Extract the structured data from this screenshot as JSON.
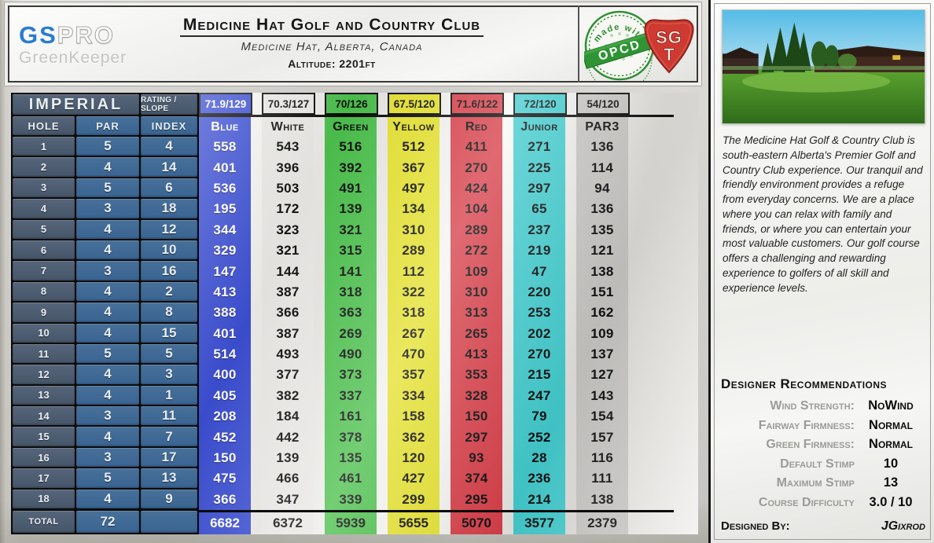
{
  "header": {
    "logo": {
      "gs": "GS",
      "pro": "PRO",
      "subtitle": "GreenKeeper"
    },
    "title": "Medicine Hat Golf and Country Club",
    "subtitle": "Medicine Hat, Alberta, Canada",
    "altitude_label": "Altitude:",
    "altitude_value": "2201ft",
    "opcd_badge": {
      "top_text": "made with",
      "label": "OPCD"
    },
    "sgt_logo": {
      "line1": "SG",
      "line2": "T"
    }
  },
  "table": {
    "units_label": "IMPERIAL",
    "rating_slope_label": "RATING / SLOPE",
    "hole_label": "HOLE",
    "par_label": "PAR",
    "index_label": "INDEX",
    "total_label": "TOTAL",
    "total_par": "72",
    "tees": [
      {
        "name": "Blue",
        "rating": "71.9/129",
        "color": "#3b4ed1",
        "text_color": "#ffffff",
        "total": "6682"
      },
      {
        "name": "White",
        "rating": "70.3/127",
        "color": "#e9e8e5",
        "text_color": "#0e0e0e",
        "total": "6372"
      },
      {
        "name": "Green",
        "rating": "70/126",
        "color": "#4cc04d",
        "text_color": "#0e0e0e",
        "total": "5939"
      },
      {
        "name": "Yellow",
        "rating": "67.5/120",
        "color": "#e4e130",
        "text_color": "#0e0e0e",
        "total": "5655"
      },
      {
        "name": "Red",
        "rating": "71.6/122",
        "color": "#d7404a",
        "text_color": "#0e0e0e",
        "total": "5070"
      },
      {
        "name": "Junior",
        "rating": "72/120",
        "color": "#43cbcd",
        "text_color": "#0e0e0e",
        "total": "3577"
      },
      {
        "name": "PAR3",
        "rating": "54/120",
        "color": "#c6c5c2",
        "text_color": "#0e0e0e",
        "total": "2379"
      }
    ],
    "holes": [
      {
        "hole": "1",
        "par": "5",
        "index": "4",
        "yards": [
          "558",
          "543",
          "516",
          "512",
          "411",
          "271",
          "136"
        ]
      },
      {
        "hole": "2",
        "par": "4",
        "index": "14",
        "yards": [
          "401",
          "396",
          "392",
          "367",
          "270",
          "225",
          "114"
        ]
      },
      {
        "hole": "3",
        "par": "5",
        "index": "6",
        "yards": [
          "536",
          "503",
          "491",
          "497",
          "424",
          "297",
          "94"
        ]
      },
      {
        "hole": "4",
        "par": "3",
        "index": "18",
        "yards": [
          "195",
          "172",
          "139",
          "134",
          "104",
          "65",
          "136"
        ]
      },
      {
        "hole": "5",
        "par": "4",
        "index": "12",
        "yards": [
          "344",
          "323",
          "321",
          "310",
          "289",
          "237",
          "135"
        ]
      },
      {
        "hole": "6",
        "par": "4",
        "index": "10",
        "yards": [
          "329",
          "321",
          "315",
          "289",
          "272",
          "219",
          "121"
        ]
      },
      {
        "hole": "7",
        "par": "3",
        "index": "16",
        "yards": [
          "147",
          "144",
          "141",
          "112",
          "109",
          "47",
          "138"
        ]
      },
      {
        "hole": "8",
        "par": "4",
        "index": "2",
        "yards": [
          "413",
          "387",
          "318",
          "322",
          "310",
          "220",
          "151"
        ]
      },
      {
        "hole": "9",
        "par": "4",
        "index": "8",
        "yards": [
          "388",
          "366",
          "363",
          "318",
          "313",
          "253",
          "162"
        ]
      },
      {
        "hole": "10",
        "par": "4",
        "index": "15",
        "yards": [
          "401",
          "387",
          "269",
          "267",
          "265",
          "202",
          "109"
        ]
      },
      {
        "hole": "11",
        "par": "5",
        "index": "5",
        "yards": [
          "514",
          "493",
          "490",
          "470",
          "413",
          "270",
          "137"
        ]
      },
      {
        "hole": "12",
        "par": "4",
        "index": "3",
        "yards": [
          "400",
          "377",
          "373",
          "357",
          "353",
          "215",
          "127"
        ]
      },
      {
        "hole": "13",
        "par": "4",
        "index": "1",
        "yards": [
          "405",
          "382",
          "337",
          "334",
          "328",
          "247",
          "143"
        ]
      },
      {
        "hole": "14",
        "par": "3",
        "index": "11",
        "yards": [
          "208",
          "184",
          "161",
          "158",
          "150",
          "79",
          "154"
        ]
      },
      {
        "hole": "15",
        "par": "4",
        "index": "7",
        "yards": [
          "452",
          "442",
          "378",
          "362",
          "297",
          "252",
          "157"
        ]
      },
      {
        "hole": "16",
        "par": "3",
        "index": "17",
        "yards": [
          "150",
          "139",
          "135",
          "120",
          "93",
          "28",
          "116"
        ]
      },
      {
        "hole": "17",
        "par": "5",
        "index": "13",
        "yards": [
          "475",
          "466",
          "461",
          "427",
          "374",
          "236",
          "111"
        ]
      },
      {
        "hole": "18",
        "par": "4",
        "index": "9",
        "yards": [
          "366",
          "347",
          "339",
          "299",
          "295",
          "214",
          "138"
        ]
      }
    ]
  },
  "sidebar": {
    "description": "The Medicine Hat Golf & Country Club is south-eastern Alberta's Premier Golf and Country Club experience. Our tranquil and friendly environment provides a refuge from everyday concerns. We are a place where you can relax with family and friends, or where you can entertain your most valuable customers. Our golf course offers a challenging and rewarding experience to golfers of all skill and experience levels.",
    "recommendations": {
      "title": "Designer Recommendations",
      "items": [
        {
          "label": "Wind Strength:",
          "value": "NoWind"
        },
        {
          "label": "Fairway Firmness:",
          "value": "Normal"
        },
        {
          "label": "Green Firmness:",
          "value": "Normal"
        },
        {
          "label": "Default Stimp",
          "value": "10"
        },
        {
          "label": "Maximum Stimp",
          "value": "13"
        },
        {
          "label": "Course Difficulty",
          "value": "3.0 / 10"
        }
      ]
    },
    "designed_by_label": "Designed By:",
    "designed_by_value": "JGixrod"
  }
}
